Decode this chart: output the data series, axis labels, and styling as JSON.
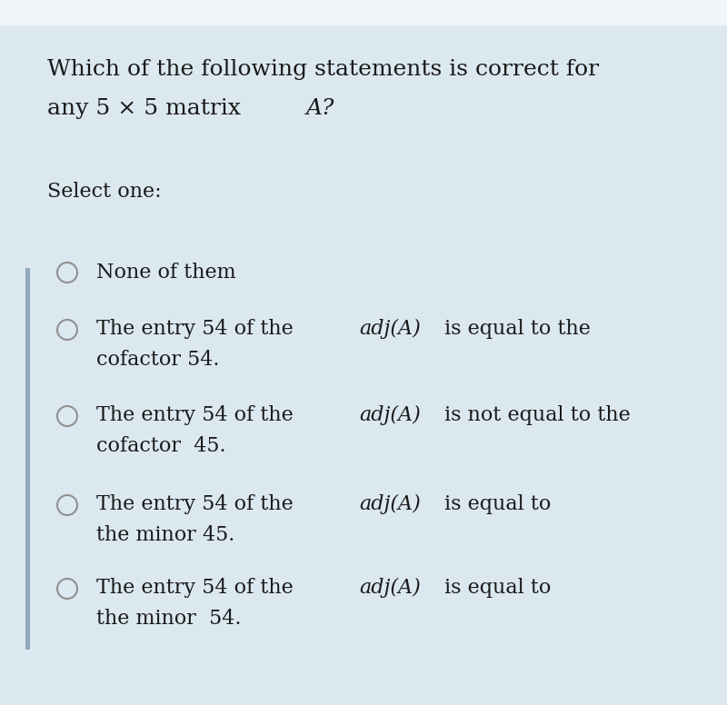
{
  "background_color": "#dce8f0",
  "top_bar_color": "#f0f4f7",
  "left_bar_color": "#8faab8",
  "text_color": "#1a1a1a",
  "circle_edge_color": "#909090",
  "figsize": [
    8.0,
    7.76
  ],
  "dpi": 100,
  "question_line1": "Which of the following statements is correct for",
  "question_line2_normal": "any 5 × 5 matrix ",
  "question_line2_italic": "A?",
  "select_label": "Select one:",
  "options": [
    {
      "line1_plain": "None of them",
      "line2": null
    },
    {
      "line1_pre": "The entry 54 of the ",
      "line1_adj": "adj(A)",
      "line1_post": " is equal to the",
      "line2": "cofactor 54."
    },
    {
      "line1_pre": "The entry 54 of the ",
      "line1_adj": "adj(A)",
      "line1_post": " is not equal to the",
      "line2": "cofactor  45."
    },
    {
      "line1_pre": "The entry 54 of the ",
      "line1_adj": "adj(A)",
      "line1_post": " is equal to",
      "line2": "the minor 45."
    },
    {
      "line1_pre": "The entry 54 of the ",
      "line1_adj": "adj(A)",
      "line1_post": " is equal to",
      "line2": "the minor  54."
    }
  ]
}
